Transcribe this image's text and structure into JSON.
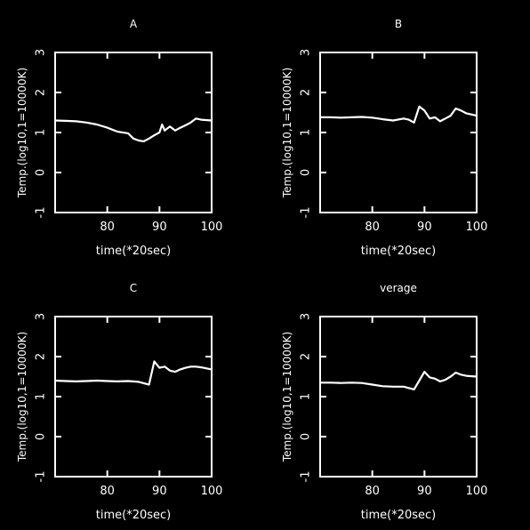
{
  "chart_data": [
    {
      "type": "line",
      "title": "A",
      "xlabel": "time(*20sec)",
      "ylabel": "Temp.(log10,1=10000K)",
      "xlim": [
        70,
        100
      ],
      "ylim": [
        -1,
        3
      ],
      "xticks": [
        80,
        90,
        100
      ],
      "yticks": [
        -1,
        0,
        1,
        2,
        3
      ],
      "grid": false,
      "series": [
        {
          "x": [
            70,
            72,
            74,
            76,
            78,
            80,
            82,
            84,
            85,
            86,
            87,
            88,
            89,
            90,
            90.5,
            91,
            92,
            93,
            94,
            95,
            96,
            97,
            98,
            100
          ],
          "y": [
            1.3,
            1.29,
            1.28,
            1.25,
            1.2,
            1.12,
            1.02,
            0.98,
            0.85,
            0.8,
            0.78,
            0.85,
            0.93,
            1.0,
            1.2,
            1.05,
            1.15,
            1.05,
            1.12,
            1.18,
            1.25,
            1.35,
            1.32,
            1.3
          ]
        }
      ]
    },
    {
      "type": "line",
      "title": "B",
      "xlabel": "time(*20sec)",
      "ylabel": "Temp.(log10,1=10000K)",
      "xlim": [
        70,
        100
      ],
      "ylim": [
        -1,
        3
      ],
      "xticks": [
        80,
        90,
        100
      ],
      "yticks": [
        -1,
        0,
        1,
        2,
        3
      ],
      "grid": false,
      "series": [
        {
          "x": [
            70,
            72,
            74,
            76,
            78,
            80,
            82,
            84,
            86,
            87,
            88,
            89,
            90,
            91,
            92,
            93,
            94,
            95,
            96,
            97,
            98,
            100
          ],
          "y": [
            1.38,
            1.38,
            1.37,
            1.38,
            1.39,
            1.37,
            1.33,
            1.3,
            1.35,
            1.32,
            1.25,
            1.65,
            1.55,
            1.35,
            1.38,
            1.28,
            1.35,
            1.42,
            1.6,
            1.55,
            1.48,
            1.42
          ]
        }
      ]
    },
    {
      "type": "line",
      "title": "C",
      "xlabel": "time(*20sec)",
      "ylabel": "Temp.(log10,1=10000K)",
      "xlim": [
        70,
        100
      ],
      "ylim": [
        -1,
        3
      ],
      "xticks": [
        80,
        90,
        100
      ],
      "yticks": [
        -1,
        0,
        1,
        2,
        3
      ],
      "grid": false,
      "series": [
        {
          "x": [
            70,
            72,
            74,
            76,
            78,
            80,
            82,
            84,
            86,
            88,
            89,
            90,
            91,
            92,
            93,
            94,
            95,
            96,
            97,
            98,
            100
          ],
          "y": [
            1.4,
            1.39,
            1.38,
            1.39,
            1.4,
            1.39,
            1.38,
            1.39,
            1.37,
            1.3,
            1.88,
            1.72,
            1.75,
            1.65,
            1.62,
            1.68,
            1.72,
            1.75,
            1.75,
            1.73,
            1.68
          ]
        }
      ]
    },
    {
      "type": "line",
      "title": "verage",
      "xlabel": "time(*20sec)",
      "ylabel": "Temp.(log10,1=10000K)",
      "xlim": [
        70,
        100
      ],
      "ylim": [
        -1,
        3
      ],
      "xticks": [
        80,
        90,
        100
      ],
      "yticks": [
        -1,
        0,
        1,
        2,
        3
      ],
      "grid": false,
      "series": [
        {
          "x": [
            70,
            72,
            74,
            76,
            78,
            80,
            82,
            84,
            86,
            88,
            89,
            90,
            91,
            92,
            93,
            94,
            95,
            96,
            97,
            98,
            100
          ],
          "y": [
            1.35,
            1.35,
            1.34,
            1.35,
            1.34,
            1.3,
            1.26,
            1.25,
            1.25,
            1.18,
            1.4,
            1.62,
            1.48,
            1.45,
            1.38,
            1.42,
            1.5,
            1.6,
            1.55,
            1.52,
            1.5
          ]
        }
      ]
    }
  ]
}
